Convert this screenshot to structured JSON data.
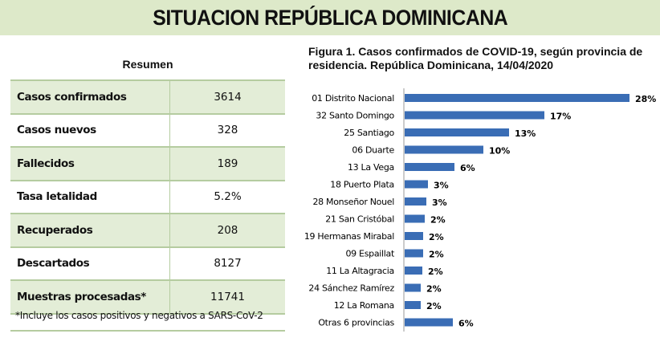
{
  "header": {
    "title": "SITUACION REPÚBLICA DOMINICANA"
  },
  "summary": {
    "title": "Resumen",
    "rows": [
      {
        "label": "Casos confirmados",
        "value": "3614"
      },
      {
        "label": "Casos nuevos",
        "value": "328"
      },
      {
        "label": "Fallecidos",
        "value": "189"
      },
      {
        "label": "Tasa letalidad",
        "value": "5.2%"
      },
      {
        "label": "Recuperados",
        "value": "208"
      },
      {
        "label": "Descartados",
        "value": "8127"
      },
      {
        "label": "Muestras procesadas*",
        "value": "11741"
      }
    ],
    "footnote": "*Incluye los casos positivos y negativos a SARS-CoV-2"
  },
  "chart_data": {
    "type": "bar",
    "orientation": "horizontal",
    "title": "Figura 1. Casos confirmados de COVID-19, según provincia de residencia. República Dominicana, 14/04/2020",
    "categories": [
      "01 Distrito Nacional",
      "32 Santo Domingo",
      "25 Santiago",
      "06 Duarte",
      "13 La Vega",
      "18 Puerto Plata",
      "28 Monseñor Nouel",
      "21 San Cristóbal",
      "19 Hermanas Mirabal",
      "09 Espaillat",
      "11 La Altagracia",
      "24 Sánchez Ramírez",
      "12 La Romana",
      "Otras 6 provincias"
    ],
    "values": [
      28,
      17.4,
      13,
      9.8,
      6.2,
      2.9,
      2.7,
      2.5,
      2.3,
      2.3,
      2.2,
      2.0,
      2.0,
      6.0
    ],
    "labels": [
      "28%",
      "17%",
      "13%",
      "10%",
      "6%",
      "3%",
      "3%",
      "2%",
      "2%",
      "2%",
      "2%",
      "2%",
      "2%",
      "6%"
    ],
    "unit": "%",
    "xlim": [
      0,
      28
    ],
    "grid": false,
    "bar_color": "#3a6db5"
  }
}
